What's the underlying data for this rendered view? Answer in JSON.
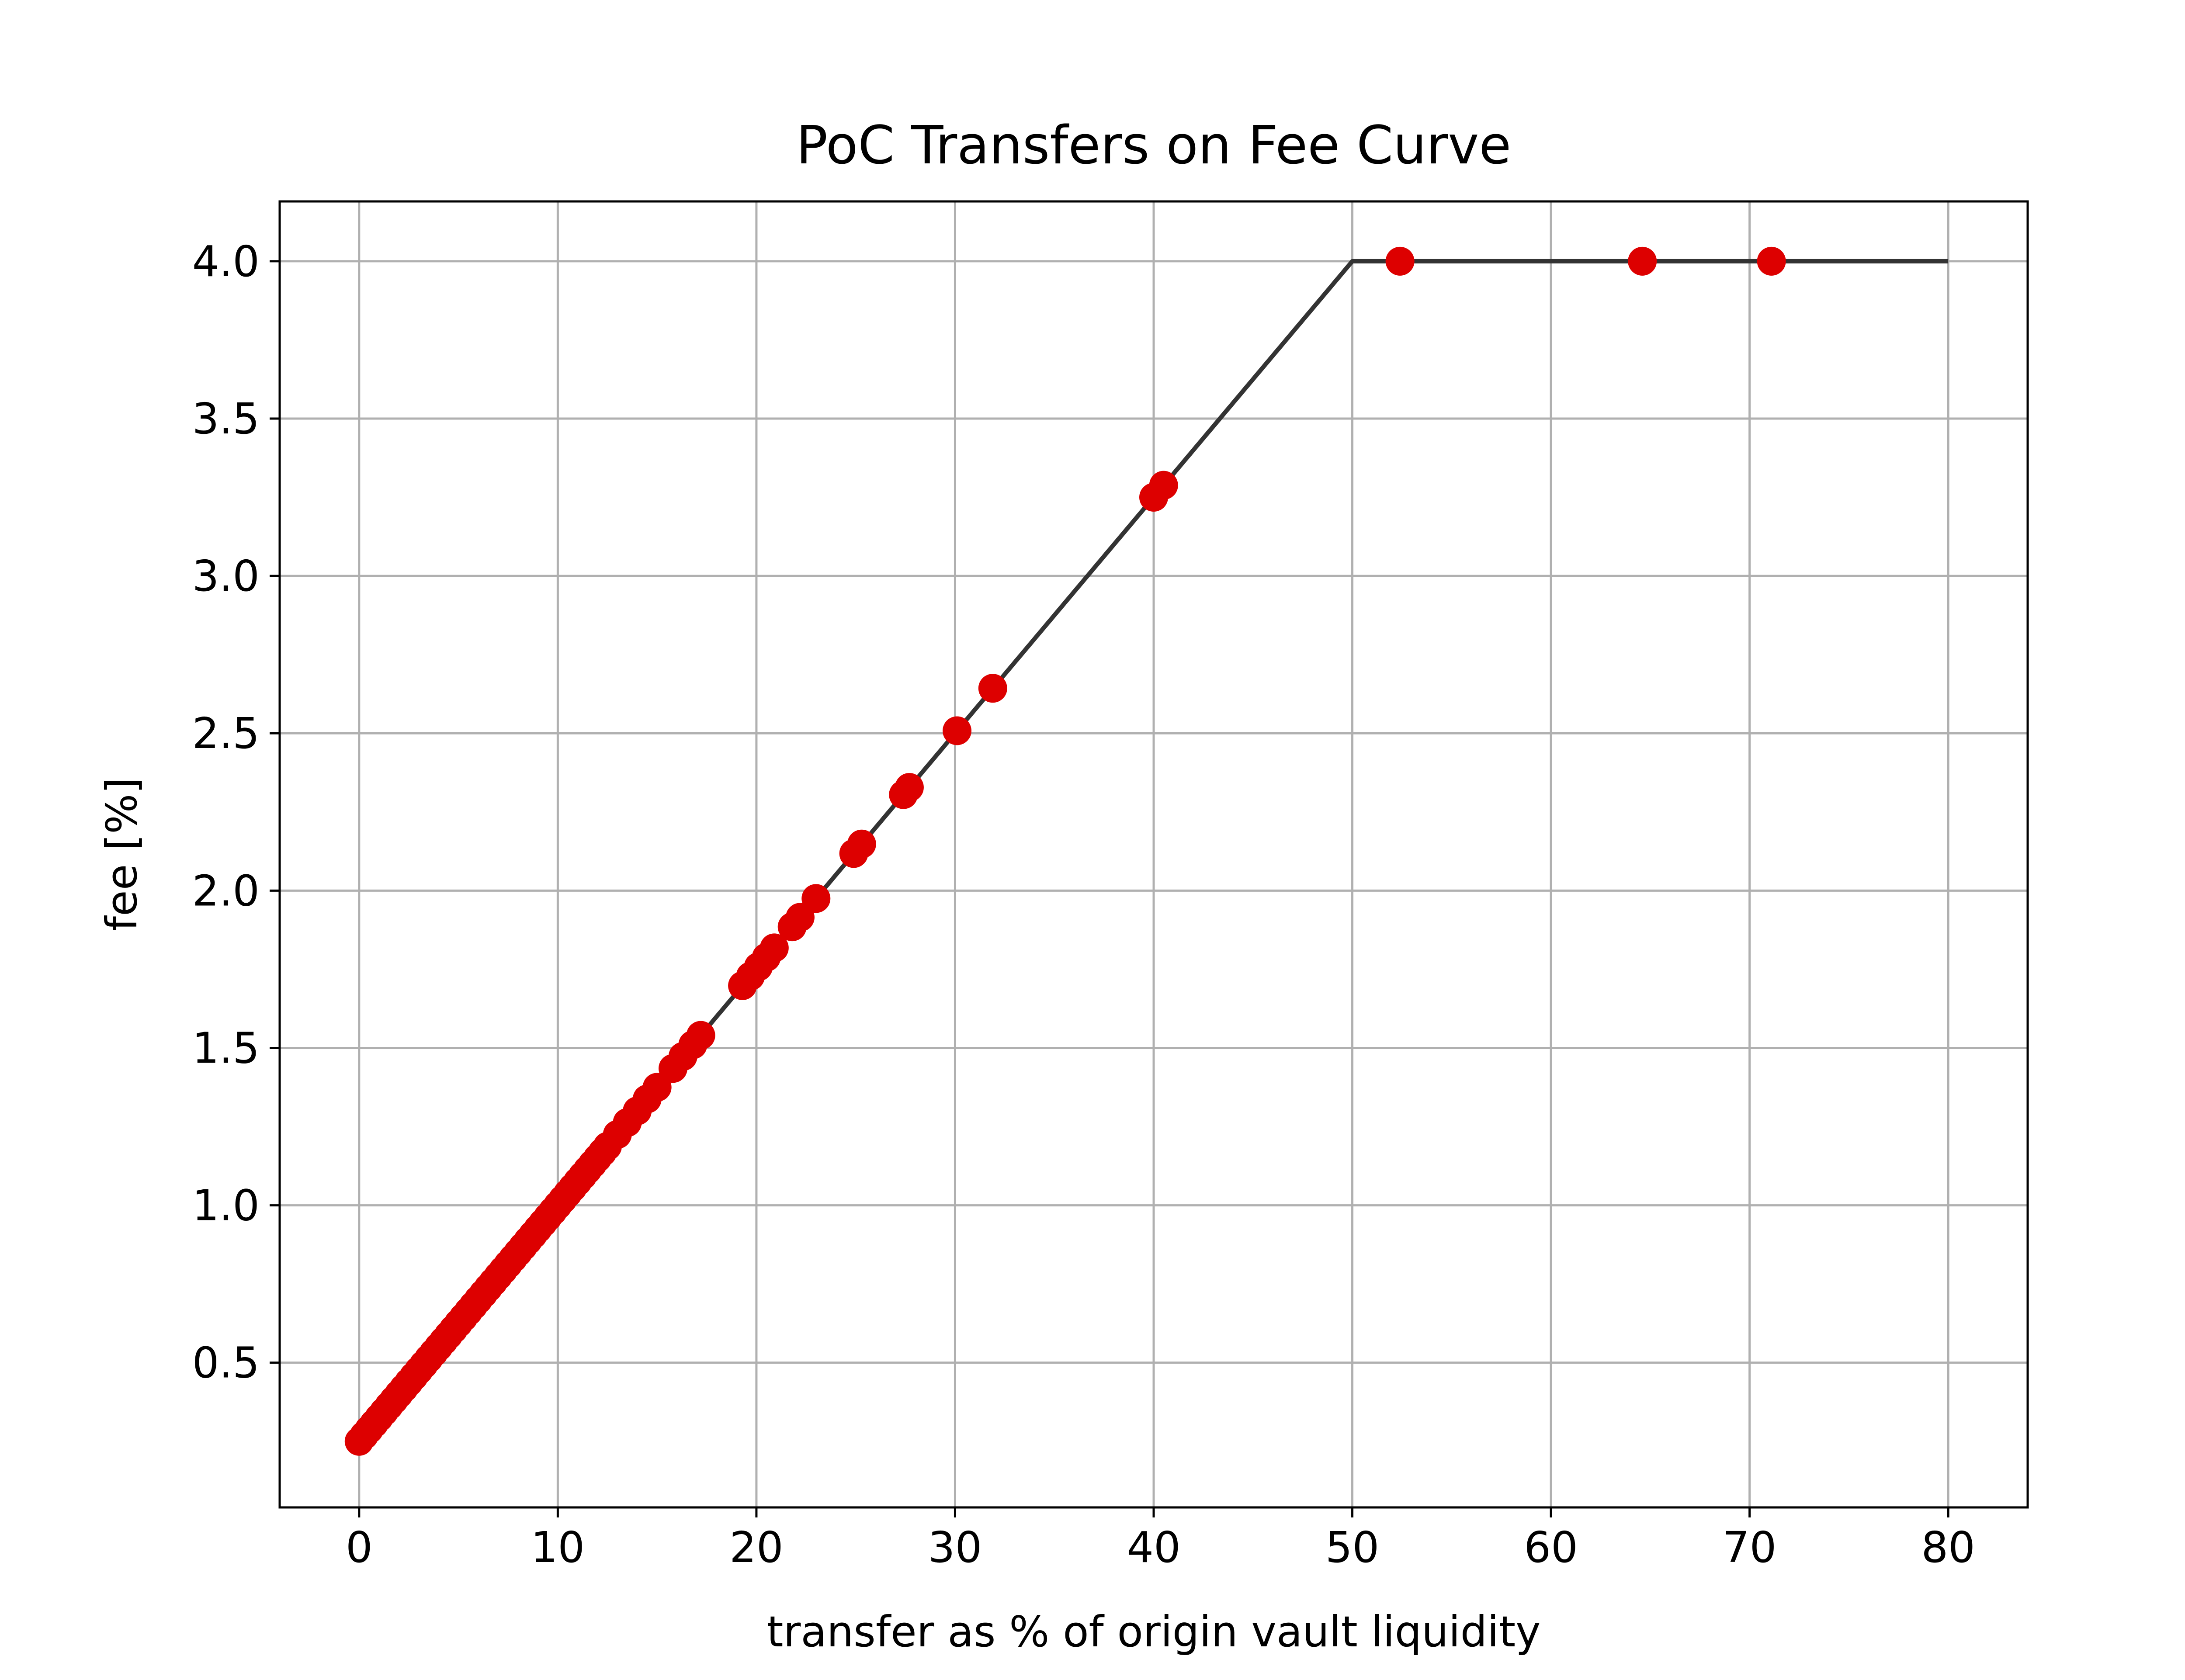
{
  "chart_data": {
    "type": "scatter",
    "title": "PoC Transfers on Fee Curve",
    "xlabel": "transfer as % of origin vault liquidity",
    "ylabel": "fee [%]",
    "xlim": [
      -4,
      84
    ],
    "ylim": [
      0.04,
      4.19
    ],
    "xticks": [
      0,
      10,
      20,
      30,
      40,
      50,
      60,
      70,
      80
    ],
    "xtick_labels": [
      "0",
      "10",
      "20",
      "30",
      "40",
      "50",
      "60",
      "70",
      "80"
    ],
    "yticks": [
      0.5,
      1.0,
      1.5,
      2.0,
      2.5,
      3.0,
      3.5,
      4.0
    ],
    "ytick_labels": [
      "0.5",
      "1.0",
      "1.5",
      "2.0",
      "2.5",
      "3.0",
      "3.5",
      "4.0"
    ],
    "grid": true,
    "series": [
      {
        "kind": "line",
        "color": "#333333",
        "x": [
          0,
          50,
          80
        ],
        "y": [
          0.25,
          4.0,
          4.0
        ]
      },
      {
        "kind": "scatter",
        "color": "#dd0000",
        "dense_range": {
          "x_from": 0,
          "x_to": 12.5,
          "step": 0.25
        },
        "x": [
          13.0,
          13.5,
          14.0,
          14.5,
          15.0,
          15.8,
          16.3,
          16.8,
          17.2,
          19.3,
          19.7,
          20.1,
          20.5,
          20.9,
          21.8,
          22.2,
          23.0,
          24.9,
          25.3,
          27.4,
          27.7,
          30.1,
          31.9,
          40.0,
          40.5,
          52.4,
          64.6,
          71.1
        ],
        "y": [
          1.225,
          1.263,
          1.3,
          1.338,
          1.375,
          1.435,
          1.473,
          1.51,
          1.54,
          1.698,
          1.728,
          1.758,
          1.788,
          1.818,
          1.885,
          1.915,
          1.975,
          2.118,
          2.148,
          2.305,
          2.328,
          2.508,
          2.643,
          3.25,
          3.288,
          4.0,
          4.0,
          4.0
        ]
      }
    ]
  }
}
